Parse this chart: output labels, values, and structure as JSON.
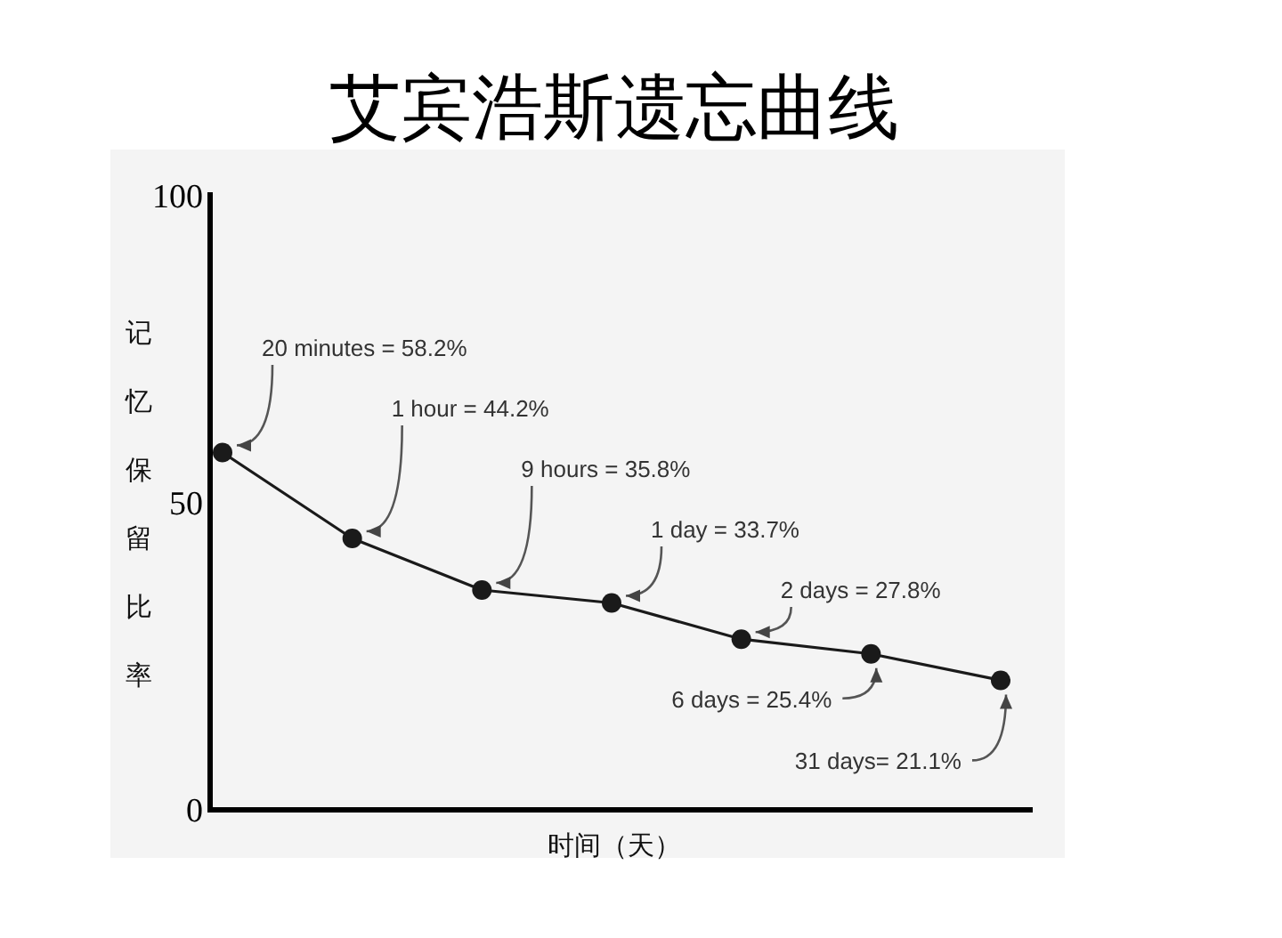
{
  "chart_data": {
    "type": "line",
    "title": "艾宾浩斯遗忘曲线",
    "xlabel": "时间（天）",
    "ylabel": "记忆保留比率",
    "categories": [
      null,
      null,
      null,
      null,
      null,
      null,
      null
    ],
    "series": [
      {
        "color": "#1a1a1a",
        "values": [
          58.2,
          44.2,
          35.8,
          33.7,
          27.8,
          25.4,
          21.1
        ],
        "value_labels": [
          "20 minutes = 58.2%",
          "1 hour = 44.2%",
          "9 hours = 35.8%",
          "1 day = 33.7%",
          "2 days = 27.8%",
          "6 days = 25.4%",
          "31 days= 21.1%"
        ]
      }
    ],
    "ylim": [
      0,
      100
    ],
    "yticks": [
      0,
      50,
      100
    ],
    "marker": "circle",
    "line_style": "solid",
    "grid": false
  }
}
